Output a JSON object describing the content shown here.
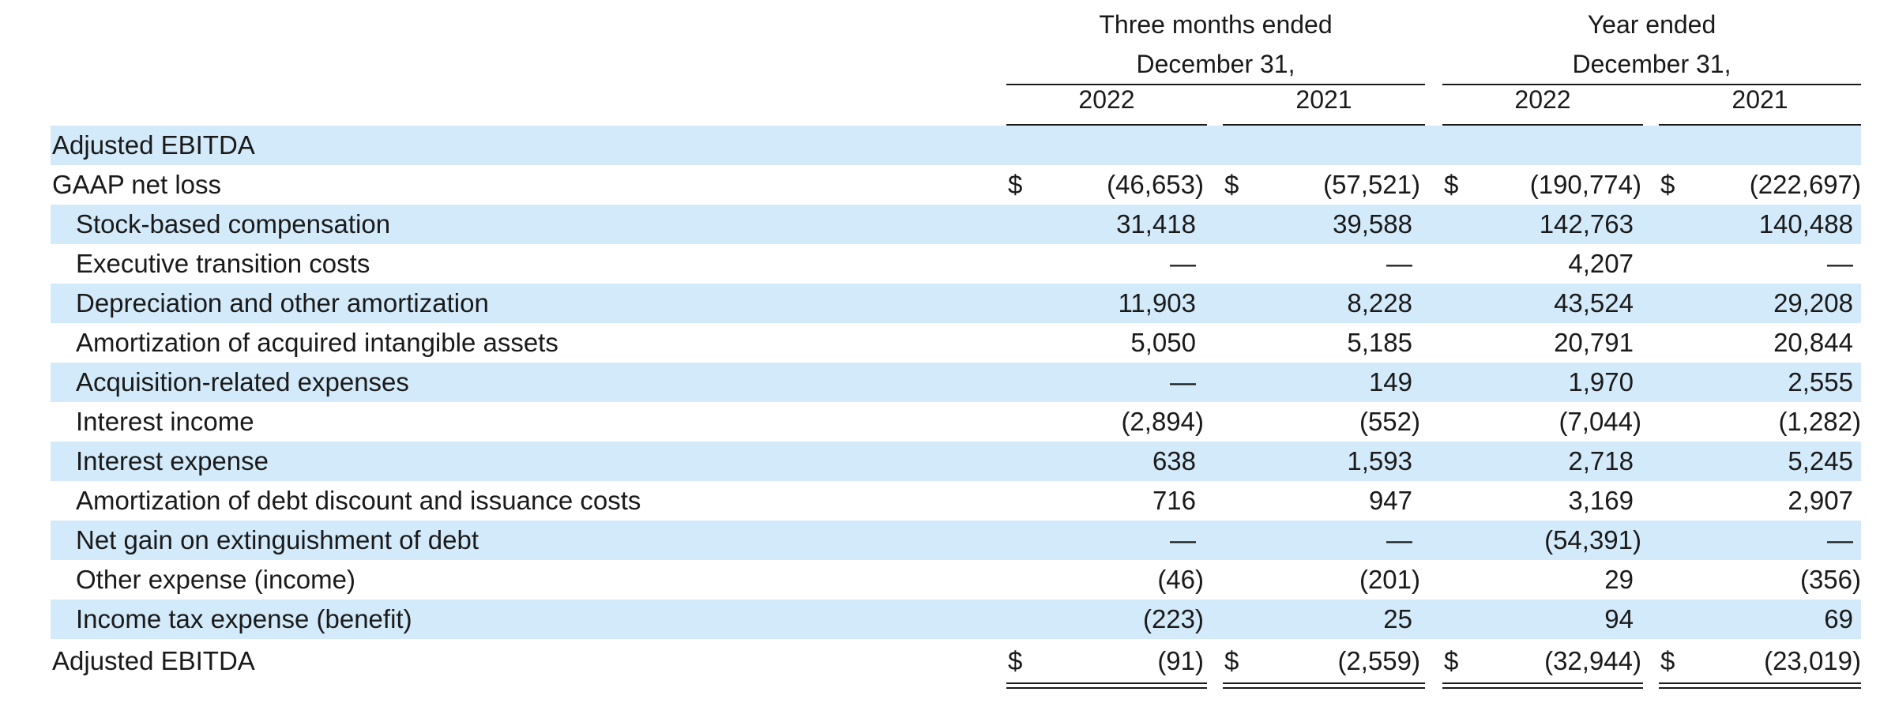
{
  "header": {
    "three_months_line1": "Three months ended",
    "three_months_line2": "December 31,",
    "year_line1": "Year ended",
    "year_line2": "December 31,",
    "years": [
      "2022",
      "2021",
      "2022",
      "2021"
    ]
  },
  "rows": [
    {
      "label": "Adjusted EBITDA",
      "values": [
        "",
        "",
        "",
        ""
      ]
    },
    {
      "label": "GAAP net loss",
      "values": [
        "(46,653)",
        "(57,521)",
        "(190,774)",
        "(222,697)"
      ],
      "dollar": "$"
    },
    {
      "label": "Stock-based compensation",
      "values": [
        "31,418",
        "39,588",
        "142,763",
        "140,488"
      ]
    },
    {
      "label": "Executive transition costs",
      "values": [
        "—",
        "—",
        "4,207",
        "—"
      ]
    },
    {
      "label": "Depreciation and other amortization",
      "values": [
        "11,903",
        "8,228",
        "43,524",
        "29,208"
      ]
    },
    {
      "label": "Amortization of acquired intangible assets",
      "values": [
        "5,050",
        "5,185",
        "20,791",
        "20,844"
      ]
    },
    {
      "label": "Acquisition-related expenses",
      "values": [
        "—",
        "149",
        "1,970",
        "2,555"
      ]
    },
    {
      "label": "Interest income",
      "values": [
        "(2,894)",
        "(552)",
        "(7,044)",
        "(1,282)"
      ]
    },
    {
      "label": "Interest expense",
      "values": [
        "638",
        "1,593",
        "2,718",
        "5,245"
      ]
    },
    {
      "label": "Amortization of debt discount and issuance costs",
      "values": [
        "716",
        "947",
        "3,169",
        "2,907"
      ]
    },
    {
      "label": "Net gain on extinguishment of debt",
      "values": [
        "—",
        "—",
        "(54,391)",
        "—"
      ]
    },
    {
      "label": "Other expense (income)",
      "values": [
        "(46)",
        "(201)",
        "29",
        "(356)"
      ]
    },
    {
      "label": "Income tax expense (benefit)",
      "values": [
        "(223)",
        "25",
        "94",
        "69"
      ]
    },
    {
      "label": "Adjusted EBITDA",
      "values": [
        "(91)",
        "(2,559)",
        "(32,944)",
        "(23,019)"
      ],
      "dollar": "$"
    }
  ]
}
